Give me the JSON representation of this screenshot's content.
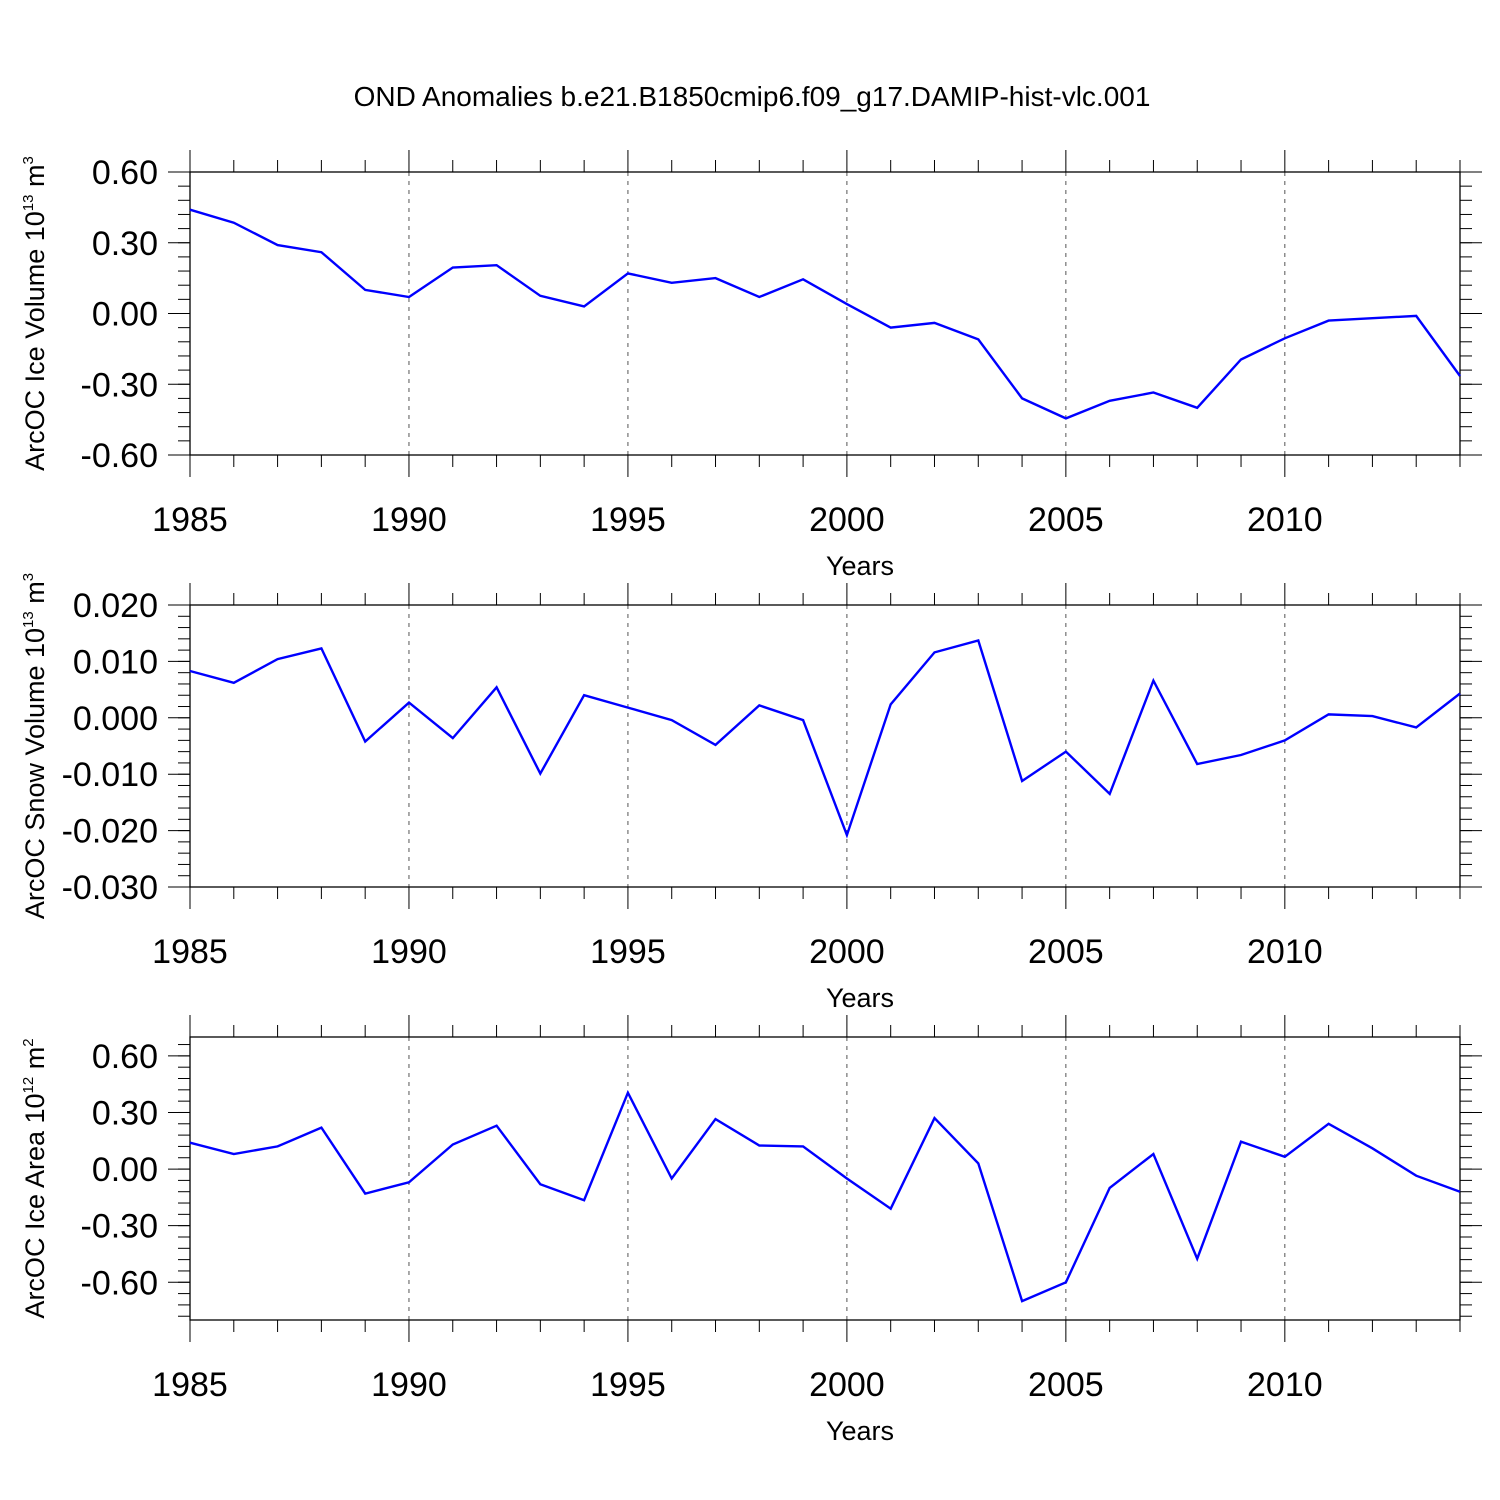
{
  "title": "OND Anomalies b.e21.B1850cmip6.f09_g17.DAMIP-hist-vlc.001",
  "colors": {
    "line": "#0000ff",
    "frame": "#000000",
    "grid": "#555555"
  },
  "chart_data": [
    {
      "type": "line",
      "ylabel_prefix": "ArcOC Ice Volume 10",
      "ylabel_exp": "13",
      "ylabel_unit": "m",
      "ylabel_unit_exp": "3",
      "xlabel": "Years",
      "xlim": [
        1985,
        2014
      ],
      "ylim": [
        -0.6,
        0.6
      ],
      "x_ticks": [
        "1985",
        "1990",
        "1995",
        "2000",
        "2005",
        "2010"
      ],
      "y_ticks": [
        "0.60",
        "0.30",
        "0.00",
        "-0.30",
        "-0.60"
      ],
      "y_tick_values": [
        0.6,
        0.3,
        0.0,
        -0.3,
        -0.6
      ],
      "y_minor_step": 0.06,
      "grid": "dashed vertical at major x ticks",
      "series": [
        {
          "name": "ArcOC Ice Volume",
          "x": [
            1985,
            1986,
            1987,
            1988,
            1989,
            1990,
            1991,
            1992,
            1993,
            1994,
            1995,
            1996,
            1997,
            1998,
            1999,
            2000,
            2001,
            2002,
            2003,
            2004,
            2005,
            2006,
            2007,
            2008,
            2009,
            2010,
            2011,
            2012,
            2013,
            2014
          ],
          "values": [
            0.44,
            0.385,
            0.29,
            0.26,
            0.1,
            0.07,
            0.195,
            0.205,
            0.075,
            0.03,
            0.17,
            0.13,
            0.15,
            0.07,
            0.145,
            0.04,
            -0.06,
            -0.04,
            -0.11,
            -0.36,
            -0.445,
            -0.37,
            -0.335,
            -0.4,
            -0.195,
            -0.105,
            -0.03,
            -0.02,
            -0.01,
            -0.265
          ]
        }
      ]
    },
    {
      "type": "line",
      "ylabel_prefix": "ArcOC Snow Volume 10",
      "ylabel_exp": "13",
      "ylabel_unit": "m",
      "ylabel_unit_exp": "3",
      "xlabel": "Years",
      "xlim": [
        1985,
        2014
      ],
      "ylim": [
        -0.03,
        0.02
      ],
      "x_ticks": [
        "1985",
        "1990",
        "1995",
        "2000",
        "2005",
        "2010"
      ],
      "y_ticks": [
        "0.020",
        "0.010",
        "0.000",
        "-0.010",
        "-0.020",
        "-0.030"
      ],
      "y_tick_values": [
        0.02,
        0.01,
        0.0,
        -0.01,
        -0.02,
        -0.03
      ],
      "y_minor_step": 0.002,
      "grid": "dashed vertical at major x ticks",
      "series": [
        {
          "name": "ArcOC Snow Volume",
          "x": [
            1985,
            1986,
            1987,
            1988,
            1989,
            1990,
            1991,
            1992,
            1993,
            1994,
            1995,
            1996,
            1997,
            1998,
            1999,
            2000,
            2001,
            2002,
            2003,
            2004,
            2005,
            2006,
            2007,
            2008,
            2009,
            2010,
            2011,
            2012,
            2013,
            2014
          ],
          "values": [
            0.0083,
            0.0062,
            0.0104,
            0.0123,
            -0.0042,
            0.0027,
            -0.0036,
            0.0054,
            -0.0099,
            0.004,
            0.0018,
            -0.0004,
            -0.0048,
            0.0022,
            -0.0004,
            -0.0208,
            0.0024,
            0.0116,
            0.0137,
            -0.0112,
            -0.006,
            -0.0135,
            0.0066,
            -0.0082,
            -0.0066,
            -0.004,
            0.0006,
            0.0003,
            -0.0017,
            0.0043
          ]
        }
      ]
    },
    {
      "type": "line",
      "ylabel_prefix": "ArcOC Ice Area 10",
      "ylabel_exp": "12",
      "ylabel_unit": "m",
      "ylabel_unit_exp": "2",
      "xlabel": "Years",
      "xlim": [
        1985,
        2014
      ],
      "ylim": [
        -0.8,
        0.7
      ],
      "x_ticks": [
        "1985",
        "1990",
        "1995",
        "2000",
        "2005",
        "2010"
      ],
      "y_ticks": [
        "0.60",
        "0.30",
        "0.00",
        "-0.30",
        "-0.60"
      ],
      "y_tick_values": [
        0.6,
        0.3,
        0.0,
        -0.3,
        -0.6
      ],
      "y_minor_step": 0.06,
      "grid": "dashed vertical at major x ticks",
      "series": [
        {
          "name": "ArcOC Ice Area",
          "x": [
            1985,
            1986,
            1987,
            1988,
            1989,
            1990,
            1991,
            1992,
            1993,
            1994,
            1995,
            1996,
            1997,
            1998,
            1999,
            2000,
            2001,
            2002,
            2003,
            2004,
            2005,
            2006,
            2007,
            2008,
            2009,
            2010,
            2011,
            2012,
            2013,
            2014
          ],
          "values": [
            0.14,
            0.08,
            0.12,
            0.22,
            -0.13,
            -0.07,
            0.13,
            0.23,
            -0.08,
            -0.165,
            0.405,
            -0.05,
            0.265,
            0.125,
            0.12,
            -0.05,
            -0.21,
            0.27,
            0.03,
            -0.7,
            -0.6,
            -0.1,
            0.08,
            -0.475,
            0.145,
            0.065,
            0.24,
            0.11,
            -0.035,
            -0.12
          ]
        }
      ]
    }
  ]
}
